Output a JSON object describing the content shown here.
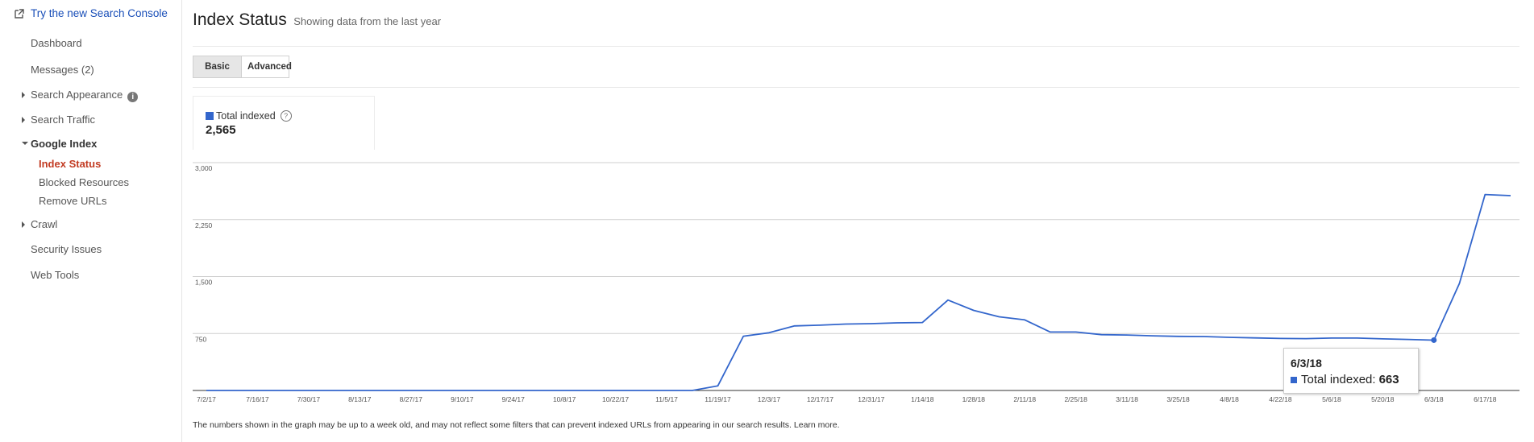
{
  "sidebar": {
    "try_link": "Try the new Search Console",
    "items": [
      {
        "label": "Dashboard"
      },
      {
        "label": "Messages (2)"
      },
      {
        "label": "Search Appearance"
      },
      {
        "label": "Search Traffic"
      },
      {
        "label": "Google Index"
      },
      {
        "label": "Crawl"
      },
      {
        "label": "Security Issues"
      },
      {
        "label": "Web Tools"
      }
    ],
    "sub_items": [
      {
        "label": "Index Status"
      },
      {
        "label": "Blocked Resources"
      },
      {
        "label": "Remove URLs"
      }
    ],
    "info_glyph": "i"
  },
  "header": {
    "title": "Index Status",
    "subtitle": "Showing data from the last year"
  },
  "tabs": [
    {
      "label": "Basic",
      "active": true
    },
    {
      "label": "Advanced",
      "active": false
    }
  ],
  "stat": {
    "label": "Total indexed",
    "value": "2,565",
    "help_glyph": "?"
  },
  "tooltip": {
    "date": "6/3/18",
    "label": "Total indexed:",
    "value": "663"
  },
  "footnote": "The numbers shown in the graph may be up to a week old, and may not reflect some filters that can prevent indexed URLs from appearing in our search results. Learn more.",
  "colors": {
    "series": "#3366cc",
    "active_nav": "#c23b22",
    "link": "#1a4fb8"
  },
  "icons": {
    "external_link": "external-link-icon",
    "info": "info-icon",
    "help": "help-icon",
    "expand": "caret-right-icon",
    "collapse": "caret-down-icon"
  },
  "chart_data": {
    "type": "line",
    "yticks": [
      "3,000",
      "2,250",
      "1,500",
      "750"
    ],
    "ytick_values": [
      3000,
      2250,
      1500,
      750
    ],
    "ylim": [
      0,
      3000
    ],
    "xticks": [
      "7/2/17",
      "7/16/17",
      "7/30/17",
      "8/13/17",
      "8/27/17",
      "9/10/17",
      "9/24/17",
      "10/8/17",
      "10/22/17",
      "11/5/17",
      "11/19/17",
      "12/3/17",
      "12/17/17",
      "12/31/17",
      "1/14/18",
      "1/28/18",
      "2/11/18",
      "2/25/18",
      "3/11/18",
      "3/25/18",
      "4/8/18",
      "4/22/18",
      "5/6/18",
      "5/20/18",
      "6/3/18",
      "6/17/18"
    ],
    "series": [
      {
        "values": [
          {
            "x": "7/2/17",
            "y": 0
          },
          {
            "x": "7/16/17",
            "y": 0
          },
          {
            "x": "7/30/17",
            "y": 0
          },
          {
            "x": "8/13/17",
            "y": 0
          },
          {
            "x": "8/27/17",
            "y": 0
          },
          {
            "x": "9/10/17",
            "y": 0
          },
          {
            "x": "9/24/17",
            "y": 0
          },
          {
            "x": "10/8/17",
            "y": 0
          },
          {
            "x": "10/22/17",
            "y": 0
          },
          {
            "x": "11/5/17",
            "y": 0
          },
          {
            "x": "11/12/17",
            "y": 0
          },
          {
            "x": "11/19/17",
            "y": 60
          },
          {
            "x": "11/26/17",
            "y": 715
          },
          {
            "x": "12/3/17",
            "y": 760
          },
          {
            "x": "12/10/17",
            "y": 850
          },
          {
            "x": "12/17/17",
            "y": 860
          },
          {
            "x": "12/24/17",
            "y": 875
          },
          {
            "x": "12/31/17",
            "y": 880
          },
          {
            "x": "1/7/18",
            "y": 890
          },
          {
            "x": "1/14/18",
            "y": 895
          },
          {
            "x": "1/21/18",
            "y": 1190
          },
          {
            "x": "1/28/18",
            "y": 1055
          },
          {
            "x": "2/4/18",
            "y": 970
          },
          {
            "x": "2/11/18",
            "y": 930
          },
          {
            "x": "2/18/18",
            "y": 770
          },
          {
            "x": "2/25/18",
            "y": 770
          },
          {
            "x": "3/4/18",
            "y": 735
          },
          {
            "x": "3/11/18",
            "y": 730
          },
          {
            "x": "3/18/18",
            "y": 720
          },
          {
            "x": "3/25/18",
            "y": 712
          },
          {
            "x": "4/1/18",
            "y": 710
          },
          {
            "x": "4/8/18",
            "y": 700
          },
          {
            "x": "4/15/18",
            "y": 692
          },
          {
            "x": "4/22/18",
            "y": 685
          },
          {
            "x": "4/29/18",
            "y": 683
          },
          {
            "x": "5/6/18",
            "y": 690
          },
          {
            "x": "5/13/18",
            "y": 690
          },
          {
            "x": "5/20/18",
            "y": 680
          },
          {
            "x": "5/27/18",
            "y": 672
          },
          {
            "x": "6/3/18",
            "y": 663
          },
          {
            "x": "6/10/18",
            "y": 1410
          },
          {
            "x": "6/17/18",
            "y": 2580
          },
          {
            "x": "6/24/18",
            "y": 2565
          }
        ]
      }
    ],
    "highlight": {
      "x": "6/3/18",
      "y": 663
    },
    "grid": true
  }
}
